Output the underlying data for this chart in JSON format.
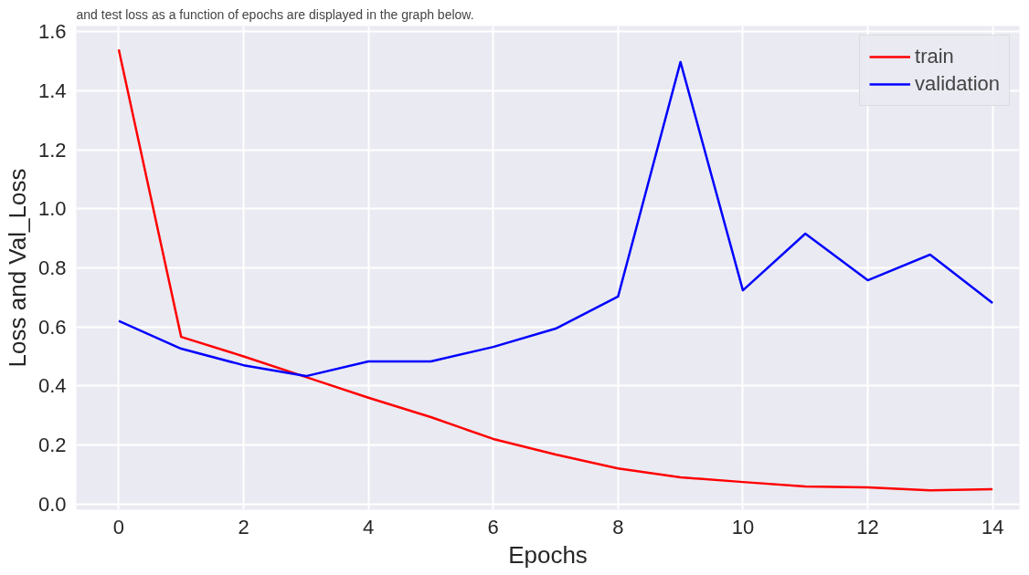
{
  "chart_data": {
    "type": "line",
    "xlabel": "Epochs",
    "ylabel": "Loss and Val_Loss",
    "annotations": [
      "and test loss as a function of epochs are displayed in the graph below."
    ],
    "x": [
      0,
      1,
      2,
      3,
      4,
      5,
      6,
      7,
      8,
      9,
      10,
      11,
      12,
      13,
      14
    ],
    "series": [
      {
        "name": "train",
        "color": "#ff0000",
        "values": [
          1.54,
          0.566,
          0.5,
          0.43,
          0.36,
          0.294,
          0.22,
          0.167,
          0.12,
          0.09,
          0.074,
          0.059,
          0.056,
          0.046,
          0.05
        ]
      },
      {
        "name": "validation",
        "color": "#0000ff",
        "values": [
          0.62,
          0.526,
          0.47,
          0.433,
          0.483,
          0.483,
          0.532,
          0.594,
          0.703,
          1.498,
          0.724,
          0.916,
          0.758,
          0.845,
          0.681
        ]
      }
    ],
    "xlim": [
      -0.68,
      14.43
    ],
    "ylim": [
      -0.02,
      1.62
    ],
    "xticks": [
      0,
      2,
      4,
      6,
      8,
      10,
      12,
      14
    ],
    "yticks": [
      {
        "value": 0,
        "label": "0.0"
      },
      {
        "value": 0.2,
        "label": "0.2"
      },
      {
        "value": 0.4,
        "label": "0.4"
      },
      {
        "value": 0.6,
        "label": "0.6"
      },
      {
        "value": 0.8,
        "label": "0.8"
      },
      {
        "value": 1.0,
        "label": "1.0"
      },
      {
        "value": 1.2,
        "label": "1.2"
      },
      {
        "value": 1.4,
        "label": "1.4"
      },
      {
        "value": 1.6,
        "label": "1.6"
      }
    ],
    "grid": true,
    "legend": "top right",
    "marker": "none",
    "line_style": "solid"
  }
}
